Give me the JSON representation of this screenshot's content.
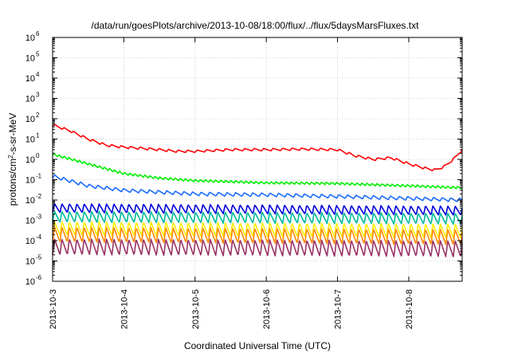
{
  "chart_data": {
    "type": "line",
    "title": "/data/run/goesPlots/archive/2013-10-08/18:00/flux/../flux/5daysMarsFluxes.txt",
    "xlabel": "Coordinated Universal Time (UTC)",
    "ylabel": "protons/cm²-s-sr-MeV",
    "yscale": "log",
    "ylim": [
      "1e-6",
      "1e6"
    ],
    "xlim": [
      "2013-10-03 00:00",
      "2013-10-08 18:00"
    ],
    "x_ticks": [
      "2013-10-3",
      "2013-10-4",
      "2013-10-5",
      "2013-10-6",
      "2013-10-7",
      "2013-10-8"
    ],
    "y_ticks": [
      {
        "base": "10",
        "exp": "-6"
      },
      {
        "base": "10",
        "exp": "-5"
      },
      {
        "base": "10",
        "exp": "-4"
      },
      {
        "base": "10",
        "exp": "-3"
      },
      {
        "base": "10",
        "exp": "-2"
      },
      {
        "base": "10",
        "exp": "-1"
      },
      {
        "base": "10",
        "exp": "0"
      },
      {
        "base": "10",
        "exp": "1"
      },
      {
        "base": "10",
        "exp": "2"
      },
      {
        "base": "10",
        "exp": "3"
      },
      {
        "base": "10",
        "exp": "4"
      },
      {
        "base": "10",
        "exp": "5"
      },
      {
        "base": "10",
        "exp": "6"
      }
    ],
    "grid": true,
    "series": [
      {
        "color": "#ff0000",
        "points": [
          [
            "2013-10-03 00:00",
            50
          ],
          [
            "2013-10-03 06:00",
            25
          ],
          [
            "2013-10-03 12:00",
            10
          ],
          [
            "2013-10-03 18:00",
            5
          ],
          [
            "2013-10-04 00:00",
            4
          ],
          [
            "2013-10-04 06:00",
            3.5
          ],
          [
            "2013-10-04 12:00",
            3
          ],
          [
            "2013-10-04 18:00",
            2.5
          ],
          [
            "2013-10-05 00:00",
            2.5
          ],
          [
            "2013-10-05 12:00",
            3
          ],
          [
            "2013-10-06 00:00",
            3
          ],
          [
            "2013-10-06 12:00",
            3.2
          ],
          [
            "2013-10-07 00:00",
            3
          ],
          [
            "2013-10-07 06:00",
            1.5
          ],
          [
            "2013-10-07 12:00",
            1
          ],
          [
            "2013-10-07 18:00",
            1.2
          ],
          [
            "2013-10-08 00:00",
            0.6
          ],
          [
            "2013-10-08 06:00",
            0.35
          ],
          [
            "2013-10-08 09:00",
            0.3
          ],
          [
            "2013-10-08 12:00",
            0.45
          ],
          [
            "2013-10-08 15:00",
            1
          ],
          [
            "2013-10-08 18:00",
            3
          ]
        ]
      },
      {
        "color": "#00ee00",
        "points": [
          [
            "2013-10-03 00:00",
            1.8
          ],
          [
            "2013-10-03 12:00",
            0.6
          ],
          [
            "2013-10-04 00:00",
            0.2
          ],
          [
            "2013-10-04 12:00",
            0.12
          ],
          [
            "2013-10-05 00:00",
            0.09
          ],
          [
            "2013-10-05 12:00",
            0.08
          ],
          [
            "2013-10-06 00:00",
            0.07
          ],
          [
            "2013-10-07 00:00",
            0.065
          ],
          [
            "2013-10-08 00:00",
            0.05
          ],
          [
            "2013-10-08 18:00",
            0.04
          ]
        ]
      },
      {
        "color": "#1a6cff",
        "points": [
          [
            "2013-10-03 00:00",
            0.15
          ],
          [
            "2013-10-03 12:00",
            0.05
          ],
          [
            "2013-10-04 00:00",
            0.03
          ],
          [
            "2013-10-05 00:00",
            0.02
          ],
          [
            "2013-10-06 00:00",
            0.018
          ],
          [
            "2013-10-07 00:00",
            0.015
          ],
          [
            "2013-10-08 00:00",
            0.012
          ],
          [
            "2013-10-08 18:00",
            0.01
          ]
        ]
      },
      {
        "color": "#0000dd",
        "points": [
          [
            "2013-10-03 00:00",
            0.004
          ],
          [
            "2013-10-08 18:00",
            0.003
          ]
        ]
      },
      {
        "color": "#00bb99",
        "points": [
          [
            "2013-10-03 00:00",
            0.0015
          ],
          [
            "2013-10-08 18:00",
            0.0012
          ]
        ]
      },
      {
        "color": "#ffee00",
        "points": [
          [
            "2013-10-03 00:00",
            0.0004
          ],
          [
            "2013-10-08 18:00",
            0.0003
          ]
        ]
      },
      {
        "color": "#ff8800",
        "points": [
          [
            "2013-10-03 00:00",
            0.0002
          ],
          [
            "2013-10-08 18:00",
            0.00015
          ]
        ]
      },
      {
        "color": "#993366",
        "points": [
          [
            "2013-10-03 00:00",
            5e-05
          ],
          [
            "2013-10-08 18:00",
            4e-05
          ]
        ]
      }
    ]
  }
}
